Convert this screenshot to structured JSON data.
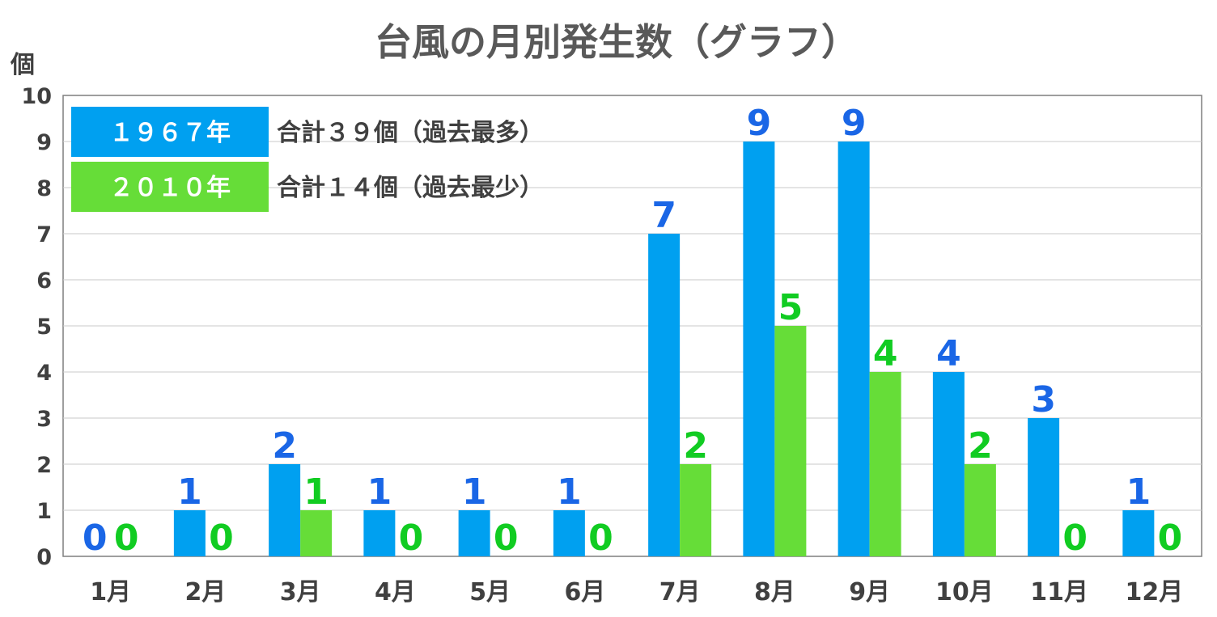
{
  "chart_data": {
    "type": "bar",
    "title": "台風の月別発生数（グラフ）",
    "ylabel": "個",
    "ylim": [
      0,
      10
    ],
    "yticks": [
      "0",
      "1",
      "2",
      "3",
      "4",
      "5",
      "6",
      "7",
      "8",
      "9",
      "10"
    ],
    "categories": [
      "1月",
      "2月",
      "3月",
      "4月",
      "5月",
      "6月",
      "7月",
      "8月",
      "9月",
      "10月",
      "11月",
      "12月"
    ],
    "grid": true,
    "legend_position": "top-left",
    "series": [
      {
        "name": "１９６７年",
        "note": "合計３９個（過去最多）",
        "color": "#00a0f0",
        "label_color": "#1a66e6",
        "values": [
          0,
          1,
          2,
          1,
          1,
          1,
          7,
          9,
          9,
          4,
          3,
          1
        ]
      },
      {
        "name": "２０１０年",
        "note": "合計１４個（過去最少）",
        "color": "#66dd38",
        "label_color": "#11cc22",
        "values": [
          0,
          0,
          1,
          0,
          0,
          0,
          2,
          5,
          4,
          2,
          0,
          0
        ]
      }
    ]
  }
}
